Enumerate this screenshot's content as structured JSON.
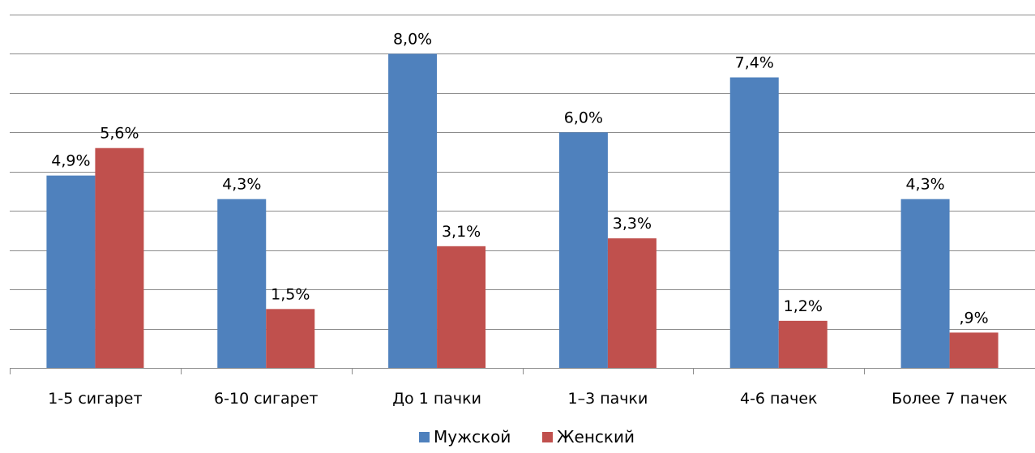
{
  "chart_data": {
    "type": "bar",
    "title": "",
    "xlabel": "",
    "ylabel": "",
    "categories": [
      "1-5 сигарет",
      "6-10 сигарет",
      "До 1 пачки",
      "1–3 пачки",
      "4-6 пачек",
      "Более 7 пачек"
    ],
    "series": [
      {
        "name": "Мужской",
        "color": "#4f81bd",
        "values": [
          4.9,
          4.3,
          8.0,
          6.0,
          7.4,
          4.3
        ],
        "labels": [
          "4,9%",
          "4,3%",
          "8,0%",
          "6,0%",
          "7,4%",
          "4,3%"
        ]
      },
      {
        "name": "Женский",
        "color": "#c0504d",
        "values": [
          5.6,
          1.5,
          3.1,
          3.3,
          1.2,
          0.9
        ],
        "labels": [
          "5,6%",
          "1,5%",
          "3,1%",
          "3,3%",
          "1,2%",
          ",9%"
        ]
      }
    ],
    "ylim": [
      0,
      9
    ],
    "ytick_step": 1,
    "grid": true,
    "legend_position": "bottom"
  }
}
